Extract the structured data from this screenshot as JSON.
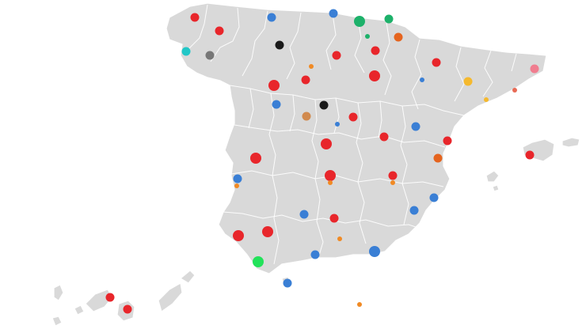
{
  "colors": {
    "background": "#ffffff",
    "land": "#d9d9d9",
    "border": "#ffffff",
    "red": "#e8262b",
    "blue": "#3a7fd5",
    "green": "#1db16a",
    "bright_green": "#22e25a",
    "orange": "#f08a24",
    "dark_orange": "#e5641e",
    "gold": "#f5b92e",
    "black": "#1a1a1a",
    "gray": "#777777",
    "cyan": "#22c7c7",
    "pink": "#f07d8f",
    "tan": "#d18a4e",
    "salmon": "#e86a55"
  },
  "markers": [
    {
      "color": "red",
      "size": "small"
    },
    {
      "color": "blue",
      "size": "small"
    },
    {
      "color": "blue",
      "size": "small"
    },
    {
      "color": "green",
      "size": "large"
    },
    {
      "color": "green",
      "size": "small"
    },
    {
      "color": "red",
      "size": "small"
    },
    {
      "color": "green",
      "size": "tiny"
    },
    {
      "color": "dark_orange",
      "size": "small"
    },
    {
      "color": "cyan",
      "size": "small"
    },
    {
      "color": "gray",
      "size": "small"
    },
    {
      "color": "black",
      "size": "small"
    },
    {
      "color": "red",
      "size": "small"
    },
    {
      "color": "orange",
      "size": "tiny"
    },
    {
      "color": "red",
      "size": "small"
    },
    {
      "color": "red",
      "size": "small"
    },
    {
      "color": "pink",
      "size": "small"
    },
    {
      "color": "red",
      "size": "large"
    },
    {
      "color": "red",
      "size": "small"
    },
    {
      "color": "red",
      "size": "large"
    },
    {
      "color": "blue",
      "size": "tiny"
    },
    {
      "color": "gold",
      "size": "small"
    },
    {
      "color": "salmon",
      "size": "tiny"
    },
    {
      "color": "gold",
      "size": "tiny"
    },
    {
      "color": "blue",
      "size": "small"
    },
    {
      "color": "black",
      "size": "small"
    },
    {
      "color": "tan",
      "size": "small"
    },
    {
      "color": "blue",
      "size": "tiny"
    },
    {
      "color": "red",
      "size": "small"
    },
    {
      "color": "blue",
      "size": "small"
    },
    {
      "color": "red",
      "size": "large"
    },
    {
      "color": "red",
      "size": "small"
    },
    {
      "color": "red",
      "size": "small"
    },
    {
      "color": "red",
      "size": "large"
    },
    {
      "color": "dark_orange",
      "size": "small"
    },
    {
      "color": "red",
      "size": "small"
    },
    {
      "color": "blue",
      "size": "small"
    },
    {
      "color": "orange",
      "size": "tiny"
    },
    {
      "color": "red",
      "size": "large"
    },
    {
      "color": "orange",
      "size": "tiny"
    },
    {
      "color": "red",
      "size": "small"
    },
    {
      "color": "orange",
      "size": "tiny"
    },
    {
      "color": "blue",
      "size": "small"
    },
    {
      "color": "blue",
      "size": "small"
    },
    {
      "color": "blue",
      "size": "small"
    },
    {
      "color": "red",
      "size": "small"
    },
    {
      "color": "red",
      "size": "large"
    },
    {
      "color": "red",
      "size": "large"
    },
    {
      "color": "orange",
      "size": "tiny"
    },
    {
      "color": "bright_green",
      "size": "large"
    },
    {
      "color": "blue",
      "size": "small"
    },
    {
      "color": "blue",
      "size": "large"
    },
    {
      "color": "blue",
      "size": "small"
    },
    {
      "color": "red",
      "size": "small"
    },
    {
      "color": "red",
      "size": "small"
    },
    {
      "color": "orange",
      "size": "tiny"
    }
  ]
}
